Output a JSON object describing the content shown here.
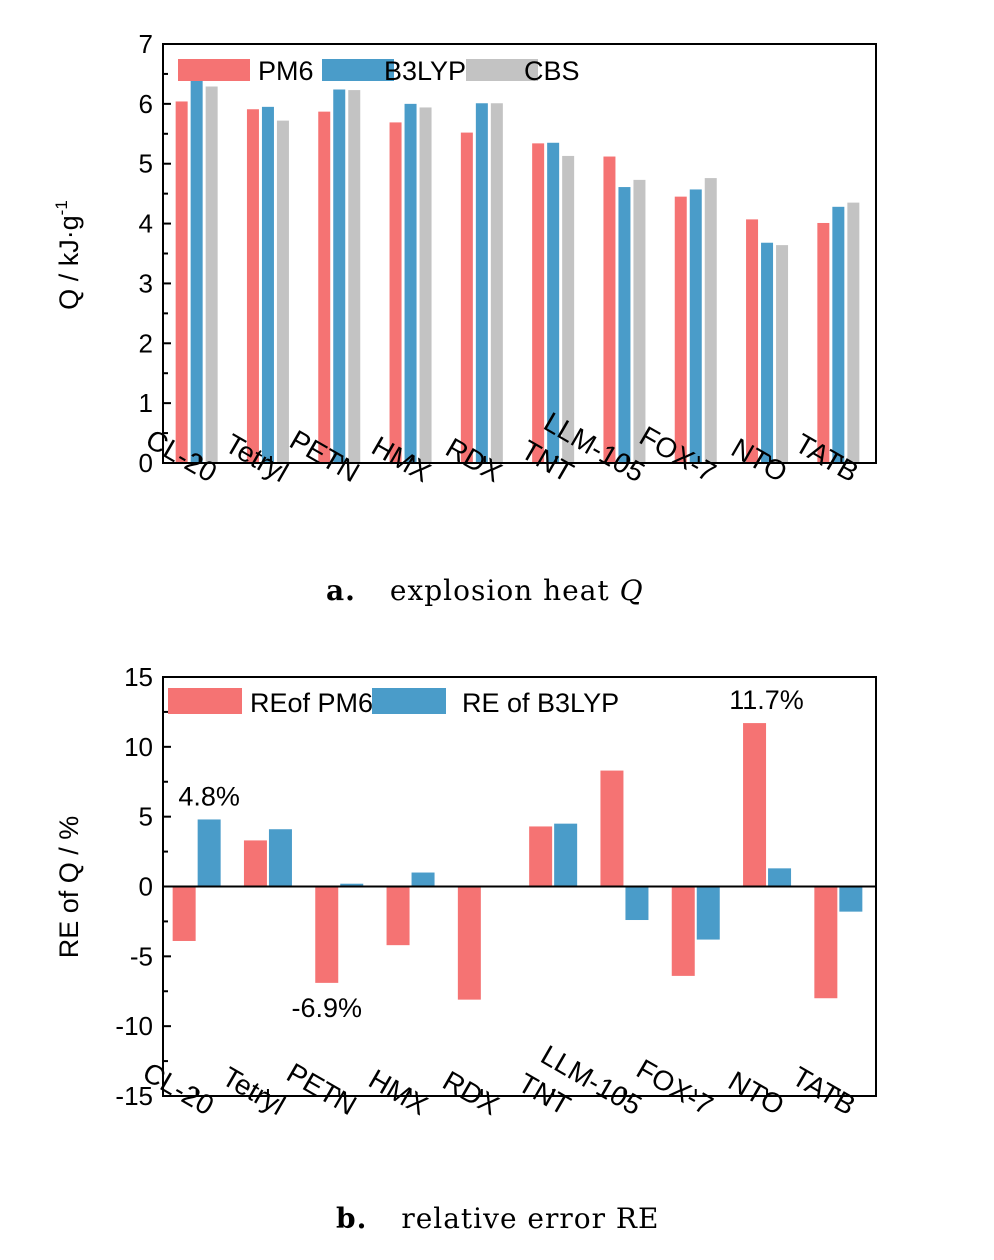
{
  "colors": {
    "pm6": "#f57373",
    "b3lyp": "#4a9cc9",
    "cbs": "#c3c3c3"
  },
  "captions": {
    "a": {
      "letter": "a.",
      "text": "explosion heat ",
      "italic": "Q"
    },
    "b": {
      "letter": "b.",
      "text": "relative error RE"
    }
  },
  "chart_data": [
    {
      "type": "bar",
      "categories": [
        "CL-20",
        "Tetryl",
        "PETN",
        "HMX",
        "RDX",
        "TNT",
        "LLM-105",
        "FOX-7",
        "NTO",
        "TATB"
      ],
      "series": [
        {
          "name": "PM6",
          "values": [
            6.04,
            5.91,
            5.87,
            5.69,
            5.52,
            5.34,
            5.12,
            4.45,
            4.07,
            4.01
          ]
        },
        {
          "name": "B3LYP",
          "values": [
            6.59,
            5.95,
            6.24,
            6.0,
            6.01,
            5.35,
            4.61,
            4.57,
            3.68,
            4.28
          ]
        },
        {
          "name": "CBS",
          "values": [
            6.29,
            5.72,
            6.23,
            5.94,
            6.01,
            5.13,
            4.73,
            4.76,
            3.64,
            4.35
          ]
        }
      ],
      "ylabel": "Q / kJ·g",
      "ylabel_sup": "-1",
      "ylim": [
        0,
        7
      ],
      "yticks": [
        "0",
        "1",
        "2",
        "3",
        "4",
        "5",
        "6",
        "7"
      ],
      "legend_position": "top-left",
      "grid": false
    },
    {
      "type": "bar",
      "categories": [
        "CL-20",
        "Tetryl",
        "PETN",
        "HMX",
        "RDX",
        "TNT",
        "LLM-105",
        "FOX-7",
        "NTO",
        "TATB"
      ],
      "series": [
        {
          "name": "REof PM6",
          "values": [
            -3.9,
            3.3,
            -6.9,
            -4.2,
            -8.1,
            4.3,
            8.3,
            -6.4,
            11.7,
            -8.0
          ]
        },
        {
          "name": "RE of B3LYP",
          "values": [
            4.8,
            4.1,
            0.2,
            1.0,
            0.0,
            4.5,
            -2.4,
            -3.8,
            1.3,
            -1.8
          ]
        }
      ],
      "ylabel": "RE of Q / %",
      "ylim": [
        -15,
        15
      ],
      "yticks": [
        "-15",
        "-10",
        "-5",
        "0",
        "5",
        "10",
        "15"
      ],
      "annotations": [
        "4.8%",
        "-6.9%",
        "11.7%"
      ],
      "legend_position": "top-left",
      "grid": false
    }
  ]
}
